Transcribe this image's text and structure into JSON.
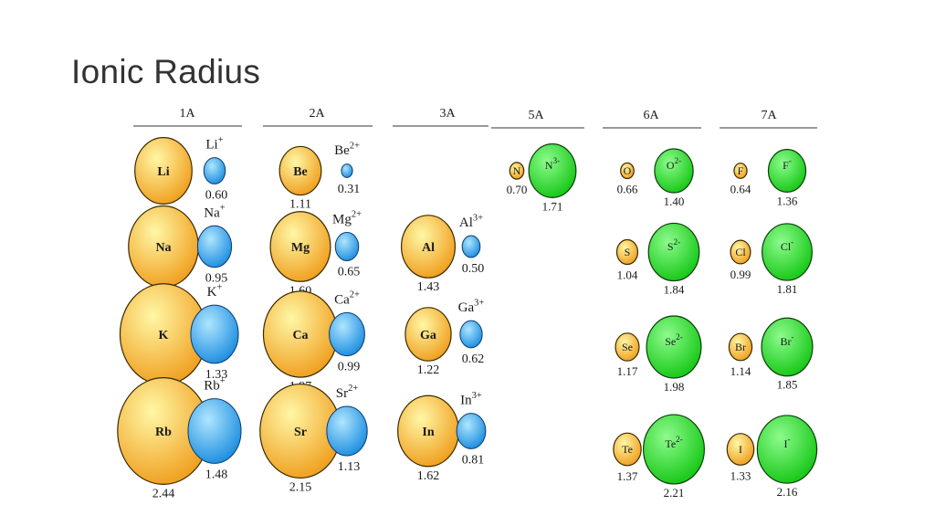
{
  "slide": {
    "title": "Ionic Radius"
  },
  "colors": {
    "atom_light": "#fff7a6",
    "atom_dark": "#f0a020",
    "metal_ion_light": "#aee6ff",
    "metal_ion_dark": "#1f8fe0",
    "nonmetal_ion_light": "#8dfb8d",
    "nonmetal_ion_dark": "#18c818",
    "outline": "#3a2a00"
  },
  "groups": [
    {
      "label": "1A",
      "elements": [
        {
          "atom": "Li",
          "atom_radius": "1.52",
          "ion_label": "Li",
          "charge": "+",
          "ion_radius": "0.60"
        },
        {
          "atom": "Na",
          "atom_radius": "1.86",
          "ion_label": "Na",
          "charge": "+",
          "ion_radius": "0.95"
        },
        {
          "atom": "K",
          "atom_radius": "2.31",
          "ion_label": "K",
          "charge": "+",
          "ion_radius": "1.33"
        },
        {
          "atom": "Rb",
          "atom_radius": "2.44",
          "ion_label": "Rb",
          "charge": "+",
          "ion_radius": "1.48"
        }
      ]
    },
    {
      "label": "2A",
      "elements": [
        {
          "atom": "Be",
          "atom_radius": "1.11",
          "ion_label": "Be",
          "charge": "2+",
          "ion_radius": "0.31"
        },
        {
          "atom": "Mg",
          "atom_radius": "1.60",
          "ion_label": "Mg",
          "charge": "2+",
          "ion_radius": "0.65"
        },
        {
          "atom": "Ca",
          "atom_radius": "1.97",
          "ion_label": "Ca",
          "charge": "2+",
          "ion_radius": "0.99"
        },
        {
          "atom": "Sr",
          "atom_radius": "2.15",
          "ion_label": "Sr",
          "charge": "2+",
          "ion_radius": "1.13"
        }
      ]
    },
    {
      "label": "3A",
      "elements": [
        {
          "atom": "Al",
          "atom_radius": "1.43",
          "ion_label": "Al",
          "charge": "3+",
          "ion_radius": "0.50"
        },
        {
          "atom": "Ga",
          "atom_radius": "1.22",
          "ion_label": "Ga",
          "charge": "3+",
          "ion_radius": "0.62"
        },
        {
          "atom": "In",
          "atom_radius": "1.62",
          "ion_label": "In",
          "charge": "3+",
          "ion_radius": "0.81"
        }
      ]
    },
    {
      "label": "5A",
      "elements": [
        {
          "atom": "N",
          "atom_radius": "0.70",
          "ion_label": "N",
          "charge": "3-",
          "ion_radius": "1.71"
        }
      ]
    },
    {
      "label": "6A",
      "elements": [
        {
          "atom": "O",
          "atom_radius": "0.66",
          "ion_label": "O",
          "charge": "2-",
          "ion_radius": "1.40"
        },
        {
          "atom": "S",
          "atom_radius": "1.04",
          "ion_label": "S",
          "charge": "2-",
          "ion_radius": "1.84"
        },
        {
          "atom": "Se",
          "atom_radius": "1.17",
          "ion_label": "Se",
          "charge": "2-",
          "ion_radius": "1.98"
        },
        {
          "atom": "Te",
          "atom_radius": "1.37",
          "ion_label": "Te",
          "charge": "2-",
          "ion_radius": "2.21"
        }
      ]
    },
    {
      "label": "7A",
      "elements": [
        {
          "atom": "F",
          "atom_radius": "0.64",
          "ion_label": "F",
          "charge": "-",
          "ion_radius": "1.36"
        },
        {
          "atom": "Cl",
          "atom_radius": "0.99",
          "ion_label": "Cl",
          "charge": "-",
          "ion_radius": "1.81"
        },
        {
          "atom": "Br",
          "atom_radius": "1.14",
          "ion_label": "Br",
          "charge": "-",
          "ion_radius": "1.85"
        },
        {
          "atom": "I",
          "atom_radius": "1.33",
          "ion_label": "I",
          "charge": "-",
          "ion_radius": "2.16"
        }
      ]
    }
  ]
}
